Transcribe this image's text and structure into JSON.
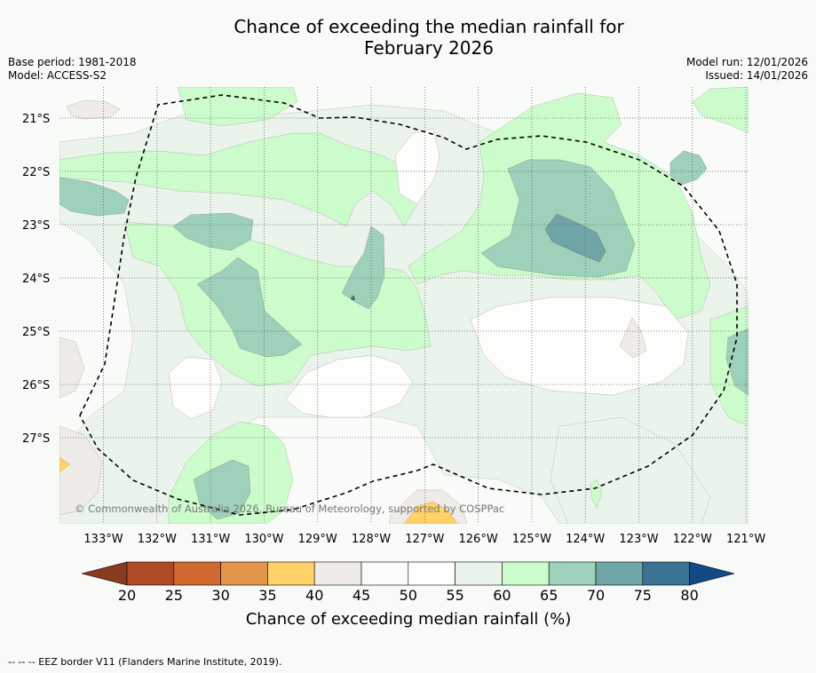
{
  "title": {
    "line1": "Chance of exceeding the median rainfall for",
    "line2": "February 2026"
  },
  "meta": {
    "base_period": "Base period: 1981-2018",
    "model": "Model: ACCESS-S2",
    "model_run": "Model run: 12/01/2026",
    "issued": "Issued: 14/01/2026"
  },
  "map": {
    "lat_labels": [
      "21°S",
      "22°S",
      "23°S",
      "24°S",
      "25°S",
      "26°S",
      "27°S"
    ],
    "lon_labels": [
      "133°W",
      "132°W",
      "131°W",
      "130°W",
      "129°W",
      "128°W",
      "127°W",
      "126°W",
      "125°W",
      "124°W",
      "123°W",
      "122°W",
      "121°W"
    ],
    "copyright": "© Commonwealth of Australia 2026, Bureau of Meteorology, supported by COSPPac",
    "small_labels": [
      "a"
    ]
  },
  "legend": {
    "ticks": [
      "20",
      "25",
      "30",
      "35",
      "40",
      "45",
      "50",
      "55",
      "60",
      "65",
      "70",
      "75",
      "80"
    ],
    "label": "Chance of exceeding median rainfall (%)",
    "colors": [
      "#8b3a22",
      "#b04a25",
      "#d0692f",
      "#e3954b",
      "#ffd166",
      "#efebe7",
      "#fbfcfa",
      "#fdfdfc",
      "#eaf4ea",
      "#ccfccc",
      "#9dd1b9",
      "#6fa5a6",
      "#3b7394",
      "#134a85"
    ]
  },
  "footnote": "--  --  -- EEZ border V11 (Flanders Marine Institute, 2019)."
}
